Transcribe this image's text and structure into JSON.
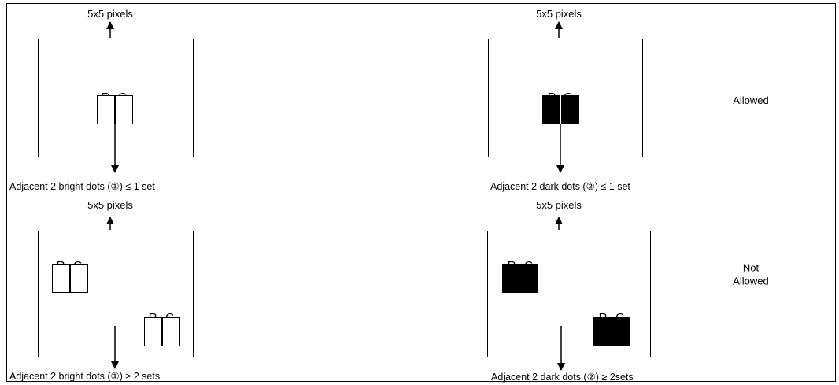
{
  "rows": [
    {
      "panels": [
        {
          "top_label": "5x5 pixels",
          "caption": "Adjacent 2 bright dots (①) ≤ 1 set",
          "dot_style": "bright",
          "groups": [
            {
              "labels": [
                "R",
                "G"
              ]
            }
          ]
        },
        {
          "top_label": "5x5 pixels",
          "caption": "Adjacent 2 dark dots (②) ≤ 1 set",
          "dot_style": "dark",
          "groups": [
            {
              "labels": [
                "R",
                "G"
              ]
            }
          ]
        }
      ],
      "verdict": "Allowed"
    },
    {
      "panels": [
        {
          "top_label": "5x5 pixels",
          "caption": "Adjacent 2 bright dots (①) ≥ 2 sets",
          "dot_style": "bright",
          "groups": [
            {
              "labels": [
                "R",
                "G"
              ]
            },
            {
              "labels": [
                "R",
                "G"
              ]
            }
          ]
        },
        {
          "top_label": "5x5 pixels",
          "caption": "Adjacent 2 dark dots (②) ≥ 2sets",
          "dot_style": "dark",
          "groups": [
            {
              "labels": [
                "R",
                "G"
              ]
            },
            {
              "labels": [
                "R",
                "G"
              ]
            }
          ]
        }
      ],
      "verdict": "Not\nAllowed"
    }
  ],
  "colors": {
    "line": "#000000",
    "bright_fill": "#ffffff",
    "dark_fill": "#000000",
    "background": "#ffffff"
  }
}
